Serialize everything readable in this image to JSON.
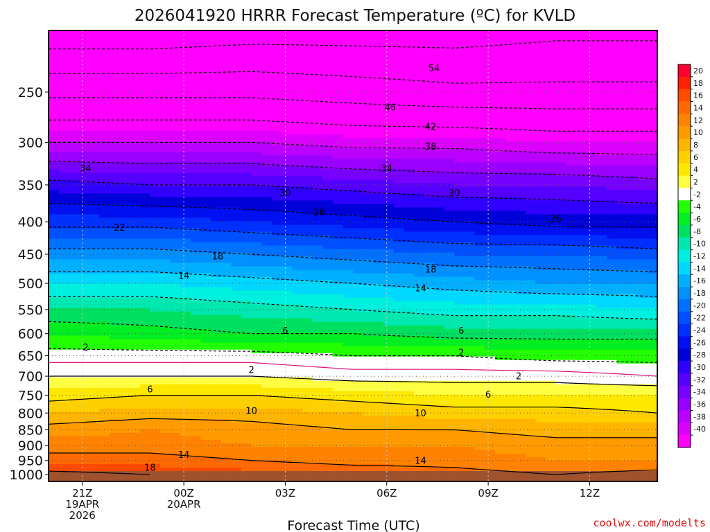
{
  "chart_data": {
    "type": "heatmap",
    "title": "2026041920 HRRR Forecast Temperature (ºC) for KVLD",
    "xlabel": "Forecast Time (UTC)",
    "ylabel": "",
    "watermark": "coolwx.com/modelts",
    "x_ticks": [
      {
        "hour": 1,
        "lines": [
          "21Z",
          "19APR",
          "2026"
        ]
      },
      {
        "hour": 4,
        "lines": [
          "00Z",
          "20APR"
        ]
      },
      {
        "hour": 7,
        "lines": [
          "03Z"
        ]
      },
      {
        "hour": 10,
        "lines": [
          "06Z"
        ]
      },
      {
        "hour": 13,
        "lines": [
          "09Z"
        ]
      },
      {
        "hour": 16,
        "lines": [
          "12Z"
        ]
      }
    ],
    "xlim": [
      0,
      18
    ],
    "y_ticks": [
      250,
      300,
      350,
      400,
      450,
      500,
      550,
      600,
      650,
      700,
      750,
      800,
      850,
      900,
      950,
      1000
    ],
    "ylim_hpa": [
      1025,
      200
    ],
    "colorbar": {
      "levels": [
        20,
        18,
        16,
        14,
        12,
        10,
        8,
        6,
        4,
        2,
        -2,
        -4,
        -6,
        -8,
        -10,
        -12,
        -14,
        -16,
        -18,
        -20,
        -22,
        -24,
        -26,
        -28,
        -30,
        -32,
        -34,
        -36,
        -38,
        -40
      ],
      "colors": [
        "#ff0033",
        "#ff2200",
        "#ff4a00",
        "#ff6a00",
        "#ff8200",
        "#ff9a00",
        "#ffb400",
        "#ffd000",
        "#ffe800",
        "#ffff44",
        "#ffffff",
        "#22ff00",
        "#00ee22",
        "#00e060",
        "#00e8b0",
        "#00f0e0",
        "#00d8ff",
        "#00b0ff",
        "#0090ff",
        "#0070ff",
        "#0050ff",
        "#0030ff",
        "#0010f0",
        "#0000d8",
        "#3000ff",
        "#5500ff",
        "#7700ff",
        "#9900ff",
        "#bb00ff",
        "#dd00ff",
        "#ff00ff"
      ]
    },
    "temperature_profile": {
      "hours": [
        0,
        3,
        6,
        9,
        12,
        15,
        18
      ],
      "pressure_levels": [
        1000,
        950,
        900,
        850,
        800,
        750,
        700,
        650,
        600,
        550,
        500,
        450,
        400,
        350,
        300,
        250,
        200
      ],
      "temperature_c": [
        [
          19,
          18,
          17,
          16,
          15,
          14,
          15
        ],
        [
          15,
          15,
          14,
          13,
          13,
          12,
          12
        ],
        [
          13,
          13,
          12,
          12,
          12,
          11,
          11
        ],
        [
          11,
          12,
          11,
          10,
          10,
          9,
          9
        ],
        [
          8,
          9,
          9,
          8,
          7,
          7,
          6
        ],
        [
          5,
          6,
          6,
          5,
          4,
          4,
          4
        ],
        [
          2,
          2,
          2,
          1,
          1,
          1,
          0
        ],
        [
          -1,
          -1,
          -1,
          -2,
          -2,
          -3,
          -3
        ],
        [
          -4,
          -5,
          -6,
          -6,
          -7,
          -7,
          -7
        ],
        [
          -8,
          -8,
          -9,
          -10,
          -11,
          -11,
          -12
        ],
        [
          -12,
          -12,
          -13,
          -14,
          -15,
          -16,
          -16
        ],
        [
          -17,
          -17,
          -18,
          -19,
          -20,
          -20,
          -21
        ],
        [
          -23,
          -23,
          -24,
          -25,
          -26,
          -27,
          -27
        ],
        [
          -29,
          -30,
          -30,
          -31,
          -32,
          -32,
          -33
        ],
        [
          -38,
          -38,
          -38,
          -39,
          -39,
          -40,
          -40
        ],
        [
          -47,
          -47,
          -47,
          -48,
          -49,
          -49,
          -49
        ],
        [
          -57,
          -57,
          -56,
          -56,
          -56,
          -55,
          -55
        ]
      ]
    },
    "contour_labels": [
      {
        "text": "54",
        "hour": 11.4,
        "p": 229
      },
      {
        "text": "46",
        "hour": 10.1,
        "p": 264
      },
      {
        "text": "42",
        "hour": 11.3,
        "p": 283
      },
      {
        "text": "38",
        "hour": 11.3,
        "p": 304
      },
      {
        "text": "34",
        "hour": 1.1,
        "p": 329
      },
      {
        "text": "34",
        "hour": 10.0,
        "p": 329
      },
      {
        "text": "30",
        "hour": 7.0,
        "p": 360
      },
      {
        "text": "30",
        "hour": 12.0,
        "p": 360
      },
      {
        "text": "26",
        "hour": 8.0,
        "p": 386
      },
      {
        "text": "26",
        "hour": 15.0,
        "p": 395
      },
      {
        "text": "22",
        "hour": 2.1,
        "p": 408
      },
      {
        "text": "18",
        "hour": 5.0,
        "p": 453
      },
      {
        "text": "18",
        "hour": 11.3,
        "p": 475
      },
      {
        "text": "14",
        "hour": 4.0,
        "p": 486
      },
      {
        "text": "14",
        "hour": 11.0,
        "p": 508
      },
      {
        "text": "6",
        "hour": 7.0,
        "p": 593
      },
      {
        "text": "6",
        "hour": 12.2,
        "p": 593
      },
      {
        "text": "2",
        "hour": 1.1,
        "p": 630
      },
      {
        "text": "2",
        "hour": 12.2,
        "p": 642
      },
      {
        "text": "2",
        "hour": 6.0,
        "p": 683
      },
      {
        "text": "2",
        "hour": 13.9,
        "p": 699
      },
      {
        "text": "6",
        "hour": 3.0,
        "p": 733
      },
      {
        "text": "6",
        "hour": 13.0,
        "p": 747
      },
      {
        "text": "10",
        "hour": 6.0,
        "p": 792
      },
      {
        "text": "10",
        "hour": 11.0,
        "p": 799
      },
      {
        "text": "14",
        "hour": 4.0,
        "p": 929
      },
      {
        "text": "14",
        "hour": 11.0,
        "p": 949
      },
      {
        "text": "18",
        "hour": 3.0,
        "p": 974
      }
    ]
  }
}
